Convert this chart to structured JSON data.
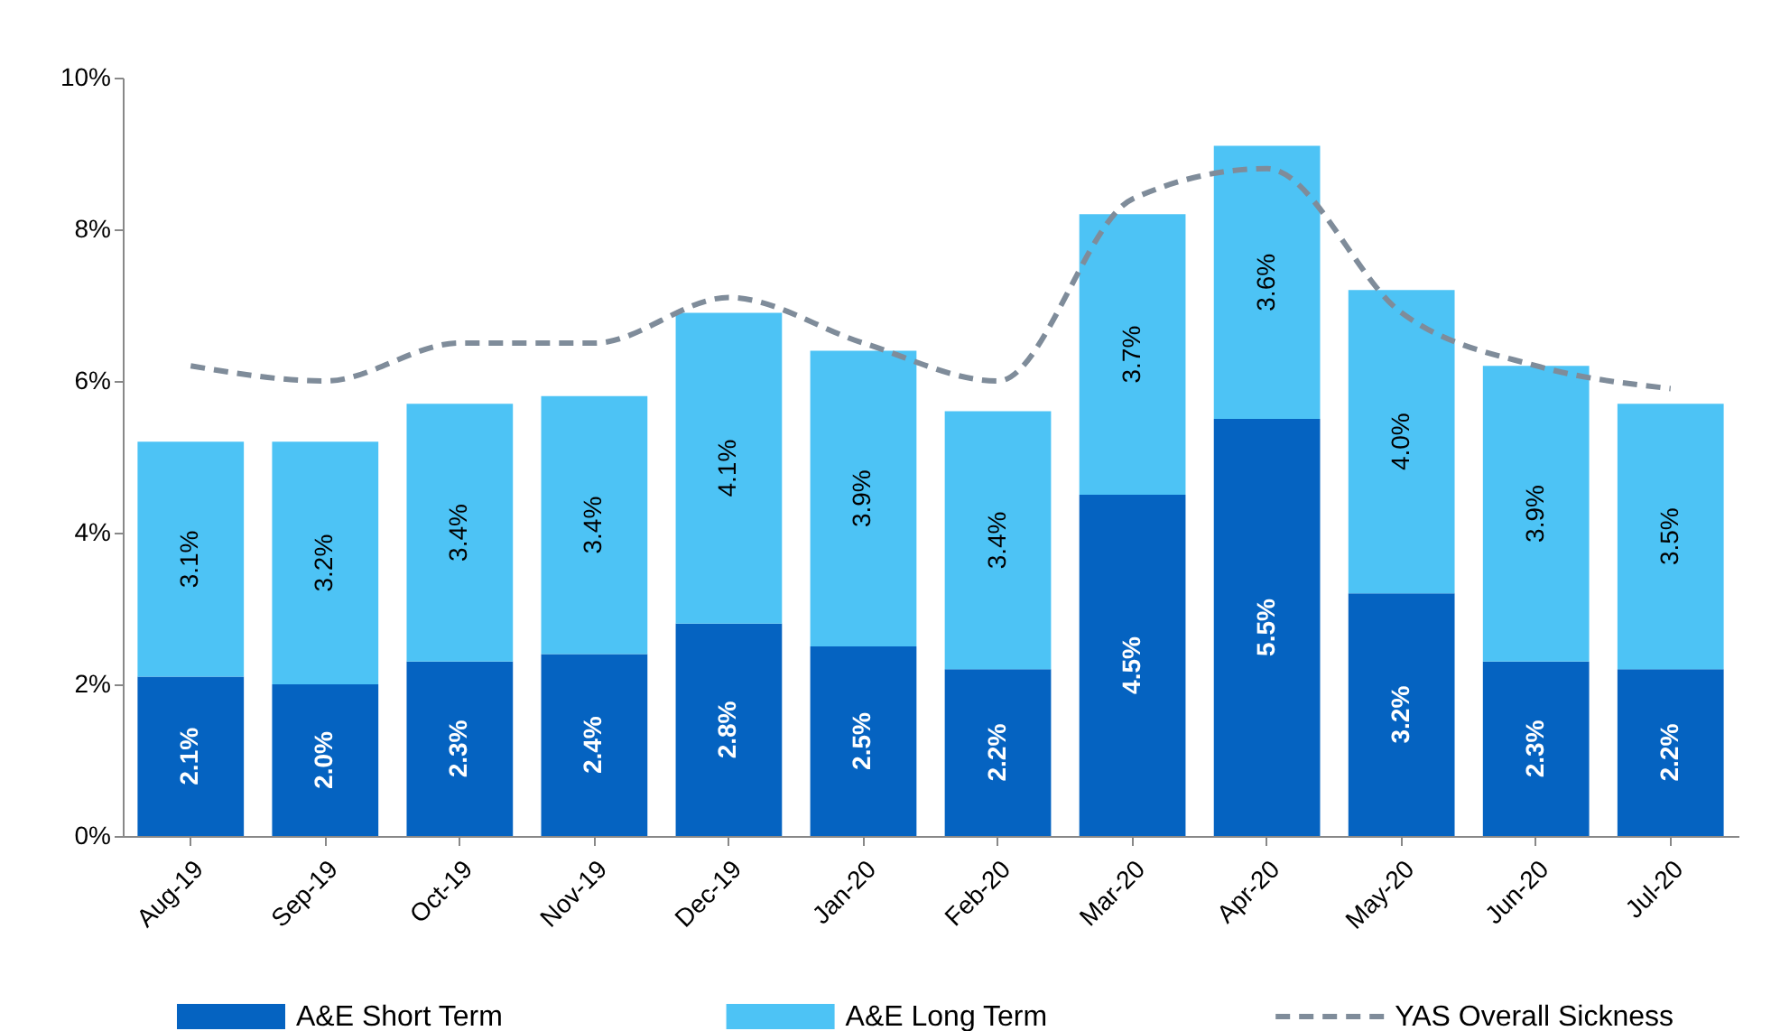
{
  "chart_data": {
    "type": "bar",
    "stacked": true,
    "categories": [
      "Aug-19",
      "Sep-19",
      "Oct-19",
      "Nov-19",
      "Dec-19",
      "Jan-20",
      "Feb-20",
      "Mar-20",
      "Apr-20",
      "May-20",
      "Jun-20",
      "Jul-20"
    ],
    "series": [
      {
        "name": "A&E Short Term",
        "color": "#0563c1",
        "values": [
          2.1,
          2.0,
          2.3,
          2.4,
          2.8,
          2.5,
          2.2,
          4.5,
          5.5,
          3.2,
          2.3,
          2.2
        ],
        "value_labels": [
          "2.1%",
          "2.0%",
          "2.3%",
          "2.4%",
          "2.8%",
          "2.5%",
          "2.2%",
          "4.5%",
          "5.5%",
          "3.2%",
          "2.3%",
          "2.2%"
        ]
      },
      {
        "name": "A&E Long Term",
        "color": "#4dc3f5",
        "values": [
          3.1,
          3.2,
          3.4,
          3.4,
          4.1,
          3.9,
          3.4,
          3.7,
          3.6,
          4.0,
          3.9,
          3.5
        ],
        "value_labels": [
          "3.1%",
          "3.2%",
          "3.4%",
          "3.4%",
          "4.1%",
          "3.9%",
          "3.4%",
          "3.7%",
          "3.6%",
          "4.0%",
          "3.9%",
          "3.5%"
        ]
      },
      {
        "name": "YAS Overall Sickness",
        "type": "line",
        "line_style": "dashed",
        "color": "#7f8c9a",
        "values": [
          6.2,
          6.0,
          6.5,
          6.5,
          7.1,
          6.5,
          6.0,
          8.4,
          8.8,
          6.9,
          6.2,
          5.9
        ]
      }
    ],
    "ylim": [
      0,
      10
    ],
    "yticks": [
      {
        "value": 0,
        "label": "0%"
      },
      {
        "value": 2,
        "label": "2%"
      },
      {
        "value": 4,
        "label": "4%"
      },
      {
        "value": 6,
        "label": "6%"
      },
      {
        "value": 8,
        "label": "8%"
      },
      {
        "value": 10,
        "label": "10%"
      }
    ],
    "grid": false,
    "legend": "bottom"
  }
}
